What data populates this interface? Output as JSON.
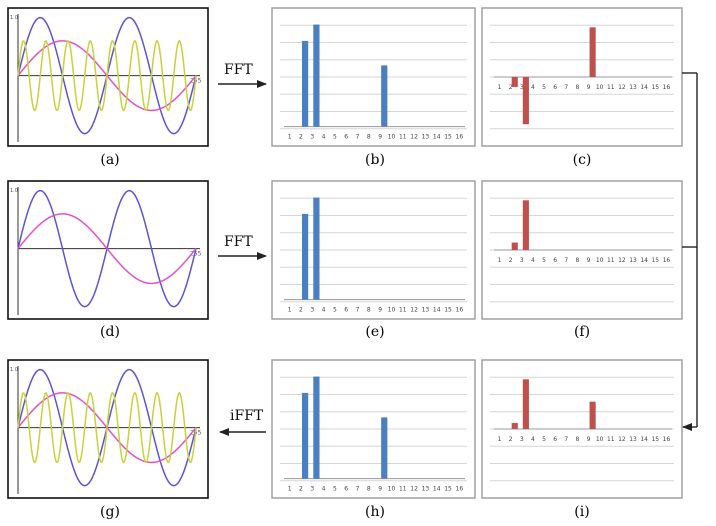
{
  "colors": {
    "blue_wave": "#5b55d6",
    "magenta_wave": "#e64fc9",
    "green_wave": "#c7d23a",
    "bar_blue": "#4a7fc1",
    "bar_red": "#c0504d",
    "grid": "#d6d6d6",
    "panel_border": "#9a9a9a",
    "arrow": "#222222"
  },
  "arrows": {
    "fft1": "FFT",
    "fft2": "FFT",
    "ifft": "iFFT"
  },
  "captions": {
    "a": "(a)",
    "b": "(b)",
    "c": "(c)",
    "d": "(d)",
    "e": "(e)",
    "f": "(f)",
    "g": "(g)",
    "h": "(h)",
    "i": "(i)"
  },
  "wave_labels": {
    "y_top": "1.0",
    "x_end": "255"
  },
  "bin_labels": [
    "1",
    "2",
    "3",
    "4",
    "5",
    "6",
    "7",
    "8",
    "9",
    "10",
    "11",
    "12",
    "13",
    "14",
    "15",
    "16"
  ],
  "chart_data": [
    {
      "panel": "a",
      "type": "line",
      "caption": "(a)",
      "series": [
        {
          "color": "blue",
          "frequency": 2,
          "amplitude": 1.0,
          "phase": "sin"
        },
        {
          "color": "magenta",
          "frequency": 1,
          "amplitude": 0.6,
          "phase": "sin"
        },
        {
          "color": "green",
          "frequency": 8,
          "amplitude": 0.6,
          "phase": "sin"
        }
      ]
    },
    {
      "panel": "b",
      "type": "bar",
      "caption": "(b)",
      "categories": [
        "1",
        "2",
        "3",
        "4",
        "5",
        "6",
        "7",
        "8",
        "9",
        "10",
        "11",
        "12",
        "13",
        "14",
        "15",
        "16"
      ],
      "values": [
        0,
        0.84,
        1.0,
        0,
        0,
        0,
        0,
        0,
        0.6,
        0,
        0,
        0,
        0,
        0,
        0,
        0
      ]
    },
    {
      "panel": "c",
      "type": "bar",
      "caption": "(c)",
      "categories": [
        "1",
        "2",
        "3",
        "4",
        "5",
        "6",
        "7",
        "8",
        "9",
        "10",
        "11",
        "12",
        "13",
        "14",
        "15",
        "16"
      ],
      "values": [
        0,
        -0.2,
        -0.95,
        0,
        0,
        0,
        0,
        0,
        1.0,
        0,
        0,
        0,
        0,
        0,
        0,
        0
      ]
    },
    {
      "panel": "d",
      "type": "line",
      "caption": "(d)",
      "series": [
        {
          "color": "blue",
          "frequency": 2,
          "amplitude": 1.0,
          "phase": "sin"
        },
        {
          "color": "magenta",
          "frequency": 1,
          "amplitude": 0.6,
          "phase": "sin"
        }
      ]
    },
    {
      "panel": "e",
      "type": "bar",
      "caption": "(e)",
      "categories": [
        "1",
        "2",
        "3",
        "4",
        "5",
        "6",
        "7",
        "8",
        "9",
        "10",
        "11",
        "12",
        "13",
        "14",
        "15",
        "16"
      ],
      "values": [
        0,
        0.84,
        1.0,
        0,
        0,
        0,
        0,
        0,
        0,
        0,
        0,
        0,
        0,
        0,
        0,
        0
      ]
    },
    {
      "panel": "f",
      "type": "bar",
      "caption": "(f)",
      "categories": [
        "1",
        "2",
        "3",
        "4",
        "5",
        "6",
        "7",
        "8",
        "9",
        "10",
        "11",
        "12",
        "13",
        "14",
        "15",
        "16"
      ],
      "values": [
        0,
        0.15,
        1.0,
        0,
        0,
        0,
        0,
        0,
        0,
        0,
        0,
        0,
        0,
        0,
        0,
        0
      ]
    },
    {
      "panel": "g",
      "type": "line",
      "caption": "(g)",
      "series": [
        {
          "color": "blue",
          "frequency": 2,
          "amplitude": 1.0,
          "phase": "sin"
        },
        {
          "color": "magenta",
          "frequency": 1,
          "amplitude": 0.6,
          "phase": "sin"
        },
        {
          "color": "green",
          "frequency": 8,
          "amplitude": 0.6,
          "phase": "sin"
        }
      ]
    },
    {
      "panel": "h",
      "type": "bar",
      "caption": "(h)",
      "categories": [
        "1",
        "2",
        "3",
        "4",
        "5",
        "6",
        "7",
        "8",
        "9",
        "10",
        "11",
        "12",
        "13",
        "14",
        "15",
        "16"
      ],
      "values": [
        0,
        0.84,
        1.0,
        0,
        0,
        0,
        0,
        0,
        0.6,
        0,
        0,
        0,
        0,
        0,
        0,
        0
      ]
    },
    {
      "panel": "i",
      "type": "bar",
      "caption": "(i)",
      "categories": [
        "1",
        "2",
        "3",
        "4",
        "5",
        "6",
        "7",
        "8",
        "9",
        "10",
        "11",
        "12",
        "13",
        "14",
        "15",
        "16"
      ],
      "values": [
        0,
        0.12,
        1.0,
        0,
        0,
        0,
        0,
        0,
        0.55,
        0,
        0,
        0,
        0,
        0,
        0,
        0
      ]
    }
  ]
}
